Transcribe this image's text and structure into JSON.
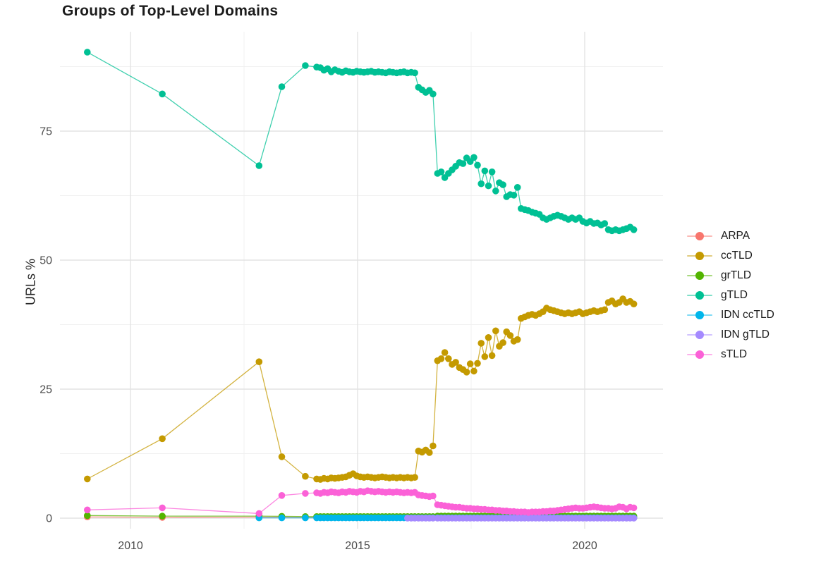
{
  "title": "Groups of Top-Level Domains",
  "chart_data": {
    "type": "line",
    "title": "Groups of Top-Level Domains",
    "xlabel": "",
    "ylabel": "URLs %",
    "grid": true,
    "legend_position": "right",
    "x_axis": {
      "ticks": [
        {
          "label": "2010",
          "value": 2010
        },
        {
          "label": "2015",
          "value": 2015
        },
        {
          "label": "2020",
          "value": 2020
        }
      ],
      "minor": [
        2012.5,
        2017.5
      ],
      "range": [
        2008.45,
        2021.72
      ]
    },
    "y_axis": {
      "ticks": [
        {
          "label": "0",
          "value": 0
        },
        {
          "label": "25",
          "value": 25
        },
        {
          "label": "50",
          "value": 50
        },
        {
          "label": "75",
          "value": 75
        }
      ],
      "minor": [
        12.5,
        37.5,
        62.5,
        87.5
      ],
      "range": [
        -2,
        94.3
      ]
    },
    "x": [
      2009.05,
      2010.7,
      2012.83,
      2013.33,
      2013.85,
      2014.1,
      2014.18,
      2014.26,
      2014.34,
      2014.42,
      2014.5,
      2014.58,
      2014.66,
      2014.74,
      2014.82,
      2014.9,
      2014.98,
      2015.06,
      2015.14,
      2015.22,
      2015.3,
      2015.38,
      2015.46,
      2015.54,
      2015.62,
      2015.7,
      2015.78,
      2015.86,
      2015.94,
      2016.02,
      2016.1,
      2016.18,
      2016.26,
      2016.34,
      2016.42,
      2016.5,
      2016.58,
      2016.66,
      2016.76,
      2016.84,
      2016.92,
      2017.0,
      2017.08,
      2017.16,
      2017.24,
      2017.32,
      2017.4,
      2017.48,
      2017.56,
      2017.64,
      2017.72,
      2017.8,
      2017.88,
      2017.96,
      2018.04,
      2018.12,
      2018.2,
      2018.28,
      2018.36,
      2018.44,
      2018.52,
      2018.6,
      2018.68,
      2018.76,
      2018.84,
      2018.92,
      2019.0,
      2019.08,
      2019.16,
      2019.24,
      2019.32,
      2019.4,
      2019.48,
      2019.56,
      2019.64,
      2019.72,
      2019.8,
      2019.88,
      2019.96,
      2020.04,
      2020.12,
      2020.2,
      2020.28,
      2020.36,
      2020.44,
      2020.52,
      2020.6,
      2020.68,
      2020.76,
      2020.84,
      2020.92,
      2021.0,
      2021.08
    ],
    "series": [
      {
        "name": "ARPA",
        "color": "#F8766D",
        "values": [
          0.25,
          0.15,
          0.2,
          0.2,
          0.15,
          0.1,
          0.1,
          0.1,
          0.1,
          0.1,
          0.1,
          0.1,
          0.1,
          0.1,
          0.1,
          0.1,
          0.1,
          0.1,
          0.1,
          0.1,
          0.1,
          0.1,
          0.1,
          0.1,
          0.1,
          0.1,
          0.1,
          0.1,
          0.1,
          0.1,
          0.1,
          0.1,
          0.1,
          0.1,
          0.1,
          0.1,
          0.1,
          0.1,
          0.1,
          0.1,
          0.1,
          0.1,
          0.1,
          0.1,
          0.1,
          0.1,
          0.1,
          0.1,
          0.1,
          0.1,
          0.1,
          0.1,
          0.1,
          0.1,
          0.1,
          0.1,
          0.1,
          0.1,
          0.1,
          0.1,
          0.1,
          0.1,
          0.1,
          0.1,
          0.1,
          0.1,
          0.1,
          0.1,
          0.1,
          0.1,
          0.1,
          0.1,
          0.1,
          0.1,
          0.1,
          0.1,
          0.1,
          0.1,
          0.1,
          0.1,
          0.1,
          0.1,
          0.1,
          0.1,
          0.1,
          0.1,
          0.1,
          0.1,
          0.1,
          0.1,
          0.1,
          0.1,
          0.1
        ]
      },
      {
        "name": "ccTLD",
        "color": "#C49A00",
        "values": [
          7.6,
          15.4,
          30.3,
          11.9,
          8.1,
          7.6,
          7.5,
          7.7,
          7.6,
          7.8,
          7.7,
          7.8,
          7.9,
          8.0,
          8.3,
          8.6,
          8.2,
          8.0,
          7.9,
          8.0,
          7.9,
          7.8,
          7.9,
          8.0,
          7.9,
          7.8,
          7.9,
          7.8,
          7.9,
          7.8,
          7.9,
          7.8,
          7.9,
          13.0,
          12.8,
          13.2,
          12.7,
          14.0,
          30.5,
          30.9,
          32.1,
          30.9,
          29.8,
          30.2,
          29.2,
          28.8,
          28.3,
          29.9,
          28.5,
          30.0,
          33.9,
          31.3,
          35.0,
          31.5,
          36.3,
          33.3,
          34.0,
          36.1,
          35.4,
          34.3,
          34.6,
          38.7,
          39.0,
          39.3,
          39.5,
          39.3,
          39.6,
          40.0,
          40.7,
          40.4,
          40.2,
          40.0,
          39.8,
          39.6,
          39.8,
          39.6,
          39.8,
          40.0,
          39.6,
          39.8,
          40.0,
          40.2,
          40.0,
          40.2,
          40.4,
          41.8,
          42.1,
          41.5,
          41.8,
          42.5,
          41.8,
          42.0,
          41.5
        ]
      },
      {
        "name": "grTLD",
        "color": "#53B400",
        "values": [
          0.5,
          0.4,
          0.4,
          0.35,
          0.3,
          0.3,
          0.3,
          0.3,
          0.3,
          0.3,
          0.3,
          0.3,
          0.3,
          0.3,
          0.3,
          0.3,
          0.3,
          0.3,
          0.3,
          0.3,
          0.3,
          0.3,
          0.3,
          0.3,
          0.3,
          0.3,
          0.3,
          0.3,
          0.3,
          0.3,
          0.3,
          0.3,
          0.3,
          0.3,
          0.3,
          0.3,
          0.3,
          0.3,
          0.4,
          0.4,
          0.4,
          0.4,
          0.4,
          0.4,
          0.4,
          0.4,
          0.4,
          0.4,
          0.4,
          0.4,
          0.4,
          0.4,
          0.4,
          0.4,
          0.4,
          0.4,
          0.4,
          0.4,
          0.4,
          0.4,
          0.4,
          0.4,
          0.4,
          0.4,
          0.4,
          0.4,
          0.4,
          0.4,
          0.4,
          0.4,
          0.4,
          0.4,
          0.4,
          0.4,
          0.4,
          0.4,
          0.4,
          0.4,
          0.4,
          0.4,
          0.4,
          0.4,
          0.4,
          0.4,
          0.4,
          0.4,
          0.4,
          0.4,
          0.4,
          0.4,
          0.4,
          0.4,
          0.4
        ]
      },
      {
        "name": "gTLD",
        "color": "#00C094",
        "values": [
          90.3,
          82.2,
          68.3,
          83.6,
          87.7,
          87.4,
          87.3,
          86.8,
          87.1,
          86.5,
          86.9,
          86.6,
          86.4,
          86.7,
          86.5,
          86.4,
          86.6,
          86.5,
          86.4,
          86.5,
          86.6,
          86.4,
          86.5,
          86.4,
          86.3,
          86.5,
          86.4,
          86.3,
          86.4,
          86.5,
          86.3,
          86.4,
          86.3,
          83.5,
          83.0,
          82.5,
          82.9,
          82.2,
          66.8,
          67.1,
          66.0,
          66.8,
          67.5,
          68.2,
          68.9,
          68.7,
          69.8,
          69.1,
          69.9,
          68.4,
          64.8,
          67.3,
          64.4,
          67.1,
          63.4,
          65.0,
          64.6,
          62.3,
          62.7,
          62.6,
          64.1,
          60.0,
          59.8,
          59.6,
          59.3,
          59.1,
          58.9,
          58.2,
          57.9,
          58.2,
          58.5,
          58.7,
          58.5,
          58.2,
          57.9,
          58.2,
          57.9,
          58.2,
          57.5,
          57.2,
          57.5,
          57.1,
          57.2,
          56.8,
          57.1,
          55.9,
          55.7,
          55.9,
          55.7,
          55.9,
          56.1,
          56.4,
          55.9
        ]
      },
      {
        "name": "IDN ccTLD",
        "color": "#00B6EB",
        "values": [
          null,
          null,
          0.05,
          0.05,
          0.05,
          0.05,
          0.05,
          0.05,
          0.05,
          0.05,
          0.05,
          0.05,
          0.05,
          0.05,
          0.05,
          0.05,
          0.05,
          0.05,
          0.05,
          0.05,
          0.05,
          0.05,
          0.05,
          0.05,
          0.05,
          0.05,
          0.05,
          0.05,
          0.05,
          0.05,
          0.05,
          0.05,
          0.05,
          0.05,
          0.05,
          0.05,
          0.05,
          0.05,
          0.05,
          0.05,
          0.05,
          0.05,
          0.05,
          0.05,
          0.05,
          0.05,
          0.05,
          0.05,
          0.05,
          0.05,
          0.05,
          0.05,
          0.05,
          0.05,
          0.05,
          0.05,
          0.05,
          0.05,
          0.05,
          0.05,
          0.05,
          0.05,
          0.05,
          0.05,
          0.05,
          0.05,
          0.05,
          0.05,
          0.05,
          0.05,
          0.05,
          0.05,
          0.05,
          0.05,
          0.05,
          0.05,
          0.05,
          0.05,
          0.05,
          0.05,
          0.05,
          0.05,
          0.05,
          0.05,
          0.05,
          0.05,
          0.05,
          0.05,
          0.05,
          0.05,
          0.05,
          0.05,
          0.05
        ]
      },
      {
        "name": "IDN gTLD",
        "color": "#A58AFF",
        "values": [
          null,
          null,
          null,
          null,
          null,
          null,
          null,
          null,
          null,
          null,
          null,
          null,
          null,
          null,
          null,
          null,
          null,
          null,
          null,
          null,
          null,
          null,
          null,
          null,
          null,
          null,
          null,
          null,
          null,
          null,
          0.0,
          0.0,
          0.0,
          0.0,
          0.0,
          0.0,
          0.0,
          0.0,
          0.0,
          0.0,
          0.0,
          0.0,
          0.0,
          0.0,
          0.0,
          0.0,
          0.0,
          0.0,
          0.0,
          0.0,
          0.0,
          0.0,
          0.0,
          0.0,
          0.0,
          0.0,
          0.0,
          0.0,
          0.0,
          0.0,
          0.0,
          0.0,
          0.0,
          0.0,
          0.0,
          0.0,
          0.0,
          0.0,
          0.0,
          0.0,
          0.0,
          0.0,
          0.0,
          0.0,
          0.0,
          0.0,
          0.0,
          0.0,
          0.0,
          0.0,
          0.0,
          0.0,
          0.0,
          0.0,
          0.0,
          0.0,
          0.0,
          0.0,
          0.0,
          0.0,
          0.0,
          0.0,
          0.0
        ]
      },
      {
        "name": "sTLD",
        "color": "#FB61D7",
        "values": [
          1.6,
          2.0,
          0.9,
          4.4,
          4.8,
          4.9,
          4.8,
          5.0,
          4.9,
          5.1,
          5.0,
          4.9,
          5.1,
          5.0,
          5.2,
          5.1,
          5.0,
          5.2,
          5.1,
          5.3,
          5.2,
          5.1,
          5.2,
          5.1,
          5.0,
          5.1,
          5.0,
          5.1,
          5.0,
          4.9,
          5.0,
          4.9,
          5.0,
          4.5,
          4.4,
          4.3,
          4.2,
          4.3,
          2.6,
          2.5,
          2.4,
          2.3,
          2.2,
          2.1,
          2.1,
          2.0,
          1.9,
          1.9,
          1.8,
          1.8,
          1.7,
          1.7,
          1.6,
          1.6,
          1.5,
          1.5,
          1.4,
          1.4,
          1.3,
          1.3,
          1.2,
          1.2,
          1.2,
          1.1,
          1.2,
          1.2,
          1.2,
          1.3,
          1.3,
          1.4,
          1.4,
          1.5,
          1.6,
          1.7,
          1.8,
          1.9,
          2.0,
          1.9,
          1.9,
          2.0,
          2.1,
          2.2,
          2.1,
          2.0,
          1.9,
          1.9,
          1.8,
          1.9,
          2.2,
          2.1,
          1.8,
          2.1,
          2.0
        ]
      }
    ]
  }
}
